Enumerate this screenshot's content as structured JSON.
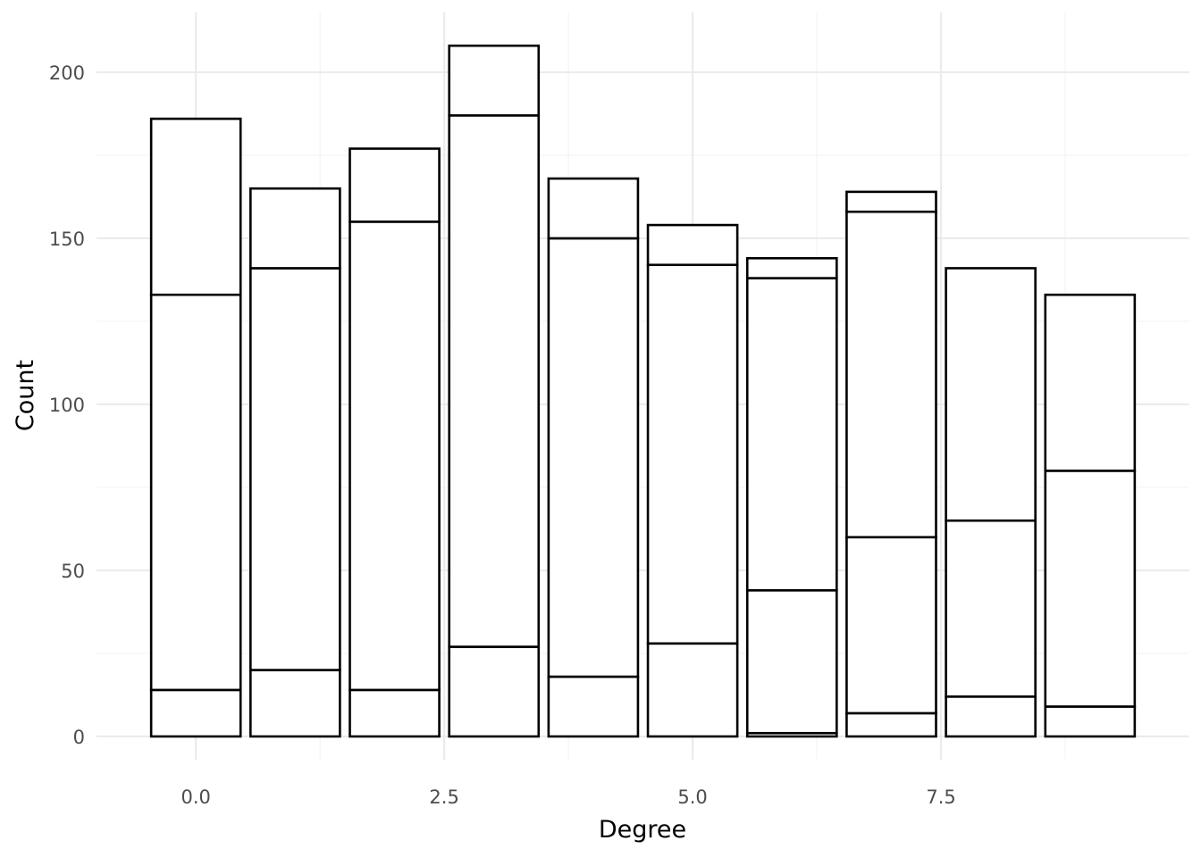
{
  "chart_data": {
    "type": "bar",
    "stacked": true,
    "title": "",
    "xlabel": "Degree",
    "ylabel": "Count",
    "xlim": [
      -1,
      10
    ],
    "ylim": [
      -7,
      218
    ],
    "x_ticks": [
      0,
      2.5,
      5,
      7.5
    ],
    "x_tick_labels": [
      "0.0",
      "2.5",
      "5.0",
      "7.5"
    ],
    "y_ticks": [
      0,
      50,
      100,
      150,
      200
    ],
    "y_tick_labels": [
      "0",
      "50",
      "100",
      "150",
      "200"
    ],
    "grid": true,
    "legend": "none",
    "bar_fill": "#ffffff",
    "bar_outline": "#000000",
    "x": [
      0,
      1,
      2,
      3,
      4,
      5,
      6,
      7,
      8,
      9
    ],
    "series": [
      {
        "values": [
          14,
          20,
          14,
          27,
          18,
          28,
          1,
          7,
          12,
          9
        ]
      },
      {
        "values": [
          119,
          121,
          141,
          160,
          132,
          114,
          43,
          53,
          53,
          71
        ]
      },
      {
        "values": [
          0,
          0,
          0,
          0,
          0,
          0,
          94,
          98,
          76,
          53
        ]
      },
      {
        "values": [
          53,
          24,
          22,
          21,
          18,
          12,
          6,
          6,
          0,
          0
        ]
      }
    ]
  }
}
